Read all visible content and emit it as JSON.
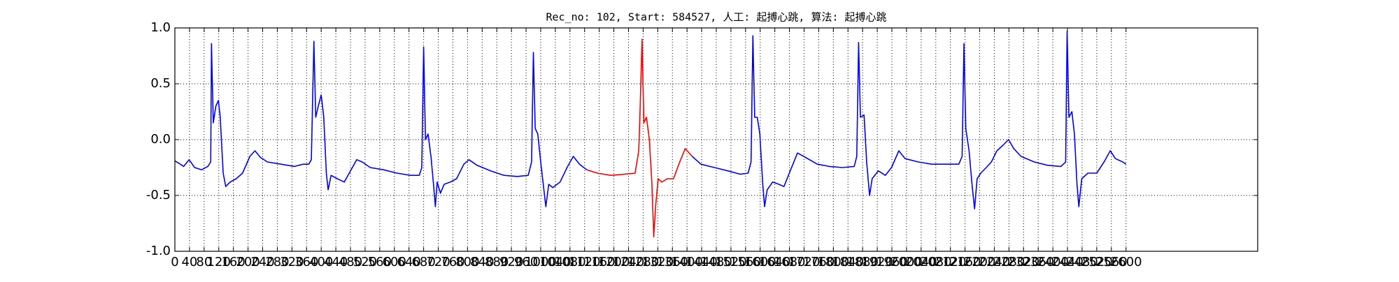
{
  "chart_data": {
    "type": "line",
    "title": "Rec_no: 102, Start: 584527, 人工: 起搏心跳, 算法: 起搏心跳",
    "xlim": [
      0,
      2960
    ],
    "ylim": [
      -1.0,
      1.0
    ],
    "xticks": [
      0,
      40,
      80,
      120,
      160,
      200,
      240,
      280,
      320,
      360,
      400,
      440,
      480,
      520,
      560,
      600,
      640,
      680,
      720,
      760,
      800,
      840,
      880,
      920,
      960,
      1000,
      1040,
      1080,
      1120,
      1160,
      1200,
      1240,
      1280,
      1320,
      1360,
      1400,
      1440,
      1480,
      1520,
      1560,
      1600,
      1640,
      1680,
      1720,
      1760,
      1800,
      1840,
      1880,
      1920,
      1960,
      2000,
      2040,
      2080,
      2120,
      2160,
      2200,
      2240,
      2280,
      2320,
      2360,
      2400,
      2440,
      2480,
      2520,
      2560,
      2600
    ],
    "yticks": [
      {
        "value": -1.0,
        "label": "-1.0"
      },
      {
        "value": -0.5,
        "label": "-0.5"
      },
      {
        "value": 0.0,
        "label": "0.0"
      },
      {
        "value": 0.5,
        "label": "0.5"
      },
      {
        "value": 1.0,
        "label": "1.0"
      }
    ],
    "grid": true,
    "series": [
      {
        "color": "#0000ff",
        "x": [
          0,
          10,
          24,
          39,
          54,
          73,
          90,
          98,
          100,
          105,
          112,
          119,
          124,
          132,
          139,
          151,
          168,
          185,
          205,
          219,
          234,
          253,
          290,
          327,
          351,
          366,
          373,
          380,
          385,
          392,
          400,
          407,
          414,
          419,
          427,
          444,
          463,
          480,
          497,
          512,
          534,
          570,
          607,
          644,
          668,
          675,
          680,
          685,
          692,
          700,
          707,
          712,
          717,
          726,
          736,
          753,
          770,
          790,
          804,
          826,
          863,
          900,
          936,
          966,
          975,
          980,
          985,
          992,
          1000,
          1007,
          1014,
          1022,
          1033,
          1053,
          1072,
          1089,
          1106,
          1126
        ],
        "values": [
          -0.19,
          -0.21,
          -0.24,
          -0.18,
          -0.25,
          -0.27,
          -0.24,
          -0.2,
          0.86,
          0.15,
          0.3,
          0.35,
          0.2,
          -0.3,
          -0.42,
          -0.38,
          -0.35,
          -0.3,
          -0.15,
          -0.1,
          -0.16,
          -0.2,
          -0.22,
          -0.24,
          -0.22,
          -0.22,
          -0.18,
          0.88,
          0.2,
          0.3,
          0.4,
          0.2,
          -0.3,
          -0.45,
          -0.32,
          -0.35,
          -0.38,
          -0.28,
          -0.18,
          -0.2,
          -0.25,
          -0.27,
          -0.3,
          -0.32,
          -0.32,
          -0.25,
          0.83,
          0.0,
          0.05,
          -0.15,
          -0.4,
          -0.6,
          -0.38,
          -0.48,
          -0.4,
          -0.38,
          -0.35,
          -0.22,
          -0.18,
          -0.23,
          -0.28,
          -0.32,
          -0.33,
          -0.32,
          -0.2,
          0.78,
          0.1,
          0.05,
          -0.2,
          -0.4,
          -0.6,
          -0.4,
          -0.43,
          -0.38,
          -0.25,
          -0.15,
          -0.22,
          -0.27
        ]
      },
      {
        "color": "#ff0000",
        "x": [
          1126,
          1155,
          1192,
          1228,
          1258,
          1268,
          1272,
          1277,
          1282,
          1289,
          1297,
          1304,
          1309,
          1314,
          1321,
          1331,
          1346,
          1363,
          1380,
          1395,
          1414
        ],
        "values": [
          -0.27,
          -0.3,
          -0.32,
          -0.31,
          -0.3,
          -0.1,
          0.3,
          0.9,
          0.15,
          0.2,
          0.0,
          -0.4,
          -0.87,
          -0.6,
          -0.35,
          -0.38,
          -0.35,
          -0.35,
          -0.2,
          -0.08,
          -0.15
        ]
      },
      {
        "color": "#0000ff",
        "x": [
          1414,
          1438,
          1475,
          1512,
          1546,
          1567,
          1575,
          1580,
          1585,
          1592,
          1599,
          1607,
          1612,
          1619,
          1634,
          1651,
          1665,
          1682,
          1702,
          1719,
          1756,
          1789,
          1825,
          1857,
          1864,
          1869,
          1874,
          1884,
          1891,
          1899,
          1906,
          1923,
          1942,
          1959,
          1979,
          1996,
          2032,
          2069,
          2106,
          2143,
          2152,
          2157,
          2162,
          2171,
          2179,
          2186,
          2193,
          2203,
          2218,
          2232,
          2247,
          2264,
          2279,
          2293,
          2313,
          2349,
          2386,
          2422,
          2435,
          2439,
          2444,
          2452,
          2459,
          2466,
          2471,
          2479,
          2496,
          2520,
          2540,
          2557,
          2571,
          2591,
          2600
        ],
        "values": [
          -0.15,
          -0.22,
          -0.25,
          -0.28,
          -0.31,
          -0.3,
          -0.2,
          0.93,
          0.2,
          0.2,
          0.05,
          -0.4,
          -0.6,
          -0.45,
          -0.38,
          -0.4,
          -0.42,
          -0.28,
          -0.12,
          -0.15,
          -0.22,
          -0.24,
          -0.25,
          -0.24,
          -0.15,
          0.87,
          0.2,
          0.22,
          -0.2,
          -0.5,
          -0.35,
          -0.28,
          -0.32,
          -0.25,
          -0.1,
          -0.17,
          -0.2,
          -0.22,
          -0.22,
          -0.22,
          -0.15,
          0.86,
          0.1,
          -0.1,
          -0.4,
          -0.62,
          -0.35,
          -0.3,
          -0.25,
          -0.2,
          -0.1,
          -0.05,
          0.0,
          -0.08,
          -0.15,
          -0.2,
          -0.23,
          -0.24,
          -0.2,
          0.97,
          0.2,
          0.25,
          0.05,
          -0.4,
          -0.6,
          -0.35,
          -0.3,
          -0.3,
          -0.2,
          -0.1,
          -0.17,
          -0.2,
          -0.22
        ]
      }
    ]
  }
}
